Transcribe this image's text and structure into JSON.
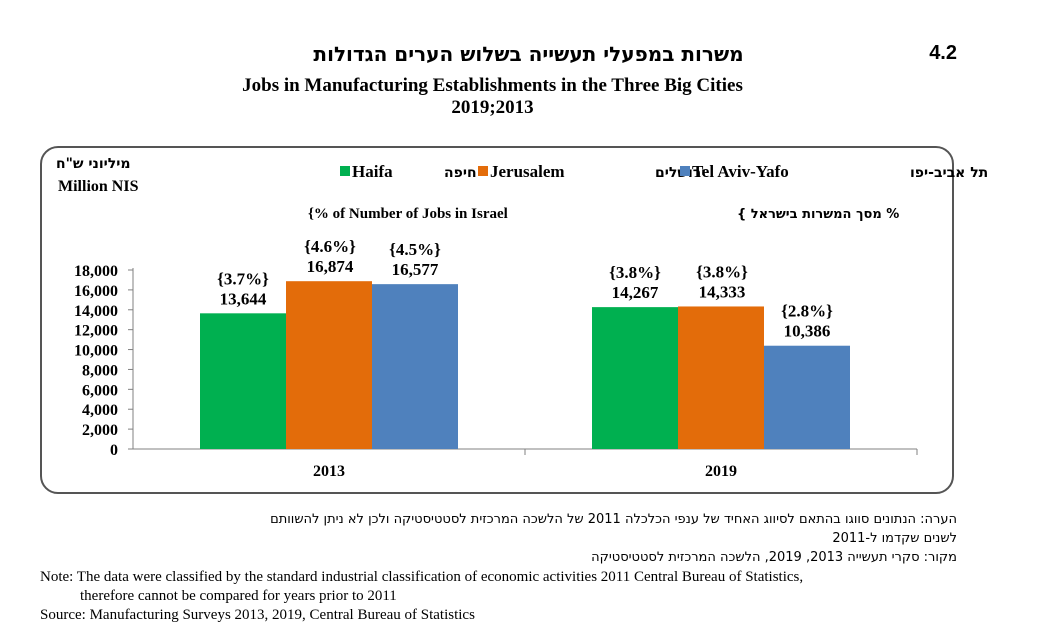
{
  "figure_number": "4.2",
  "title_he": "משרות במפעלי תעשייה בשלוש הערים הגדולות",
  "title_en": "Jobs in Manufacturing Establishments in the Three Big Cities",
  "subtitle": "2019;2013",
  "y_unit_he": "מיליוני ש\"ח",
  "y_unit_en": "Million NIS",
  "legend": [
    {
      "en": "Haifa",
      "he": "חיפה",
      "color": "#00b050"
    },
    {
      "en": "Jerusalem",
      "he": "ירושלים",
      "color": "#e36c0a"
    },
    {
      "en": "Tel Aviv-Yafo",
      "he": "תל אביב-יפו",
      "color": "#4f81bd"
    }
  ],
  "percent_note_en": "{% of  Number of Jobs in Israel",
  "percent_note_he": "% מסך המשרות  בישראל }",
  "chart_data": {
    "type": "bar",
    "categories": [
      "2013",
      "2019"
    ],
    "series": [
      {
        "name": "Haifa",
        "values": [
          13644,
          14267
        ],
        "labels": [
          "13,644",
          "14,267"
        ],
        "percents": [
          "{3.7%}",
          "{3.8%}"
        ]
      },
      {
        "name": "Jerusalem",
        "values": [
          16874,
          14333
        ],
        "labels": [
          "16,874",
          "14,333"
        ],
        "percents": [
          "{4.6%}",
          "{3.8%}"
        ]
      },
      {
        "name": "Tel Aviv-Yafo",
        "values": [
          16577,
          10386
        ],
        "labels": [
          "16,577",
          "10,386"
        ],
        "percents": [
          "{4.5%}",
          "{2.8%}"
        ]
      }
    ],
    "yticks": [
      "0",
      "2,000",
      "4,000",
      "6,000",
      "8,000",
      "10,000",
      "12,000",
      "14,000",
      "16,000",
      "18,000"
    ],
    "ylim": [
      0,
      18000
    ],
    "grid": false,
    "legend_position": "top"
  },
  "notes": {
    "note_he_1": "הערה: הנתונים סווגו בהתאם לסיווג האחיד של ענפי הכלכלה 2011 של הלשכה המרכזית לסטטיסטיקה ולכן לא ניתן להשוותם",
    "note_he_2": "לשנים שקדמו ל-2011",
    "source_he": "מקור: סקרי תעשייה 2013, 2019, הלשכה המרכזית לסטטיסטיקה",
    "note_en_1": "Note: The data were classified by the standard industrial classification of economic activities 2011 Central Bureau of Statistics,",
    "note_en_2": "therefore cannot be compared for years prior to 2011",
    "source_en": "Source: Manufacturing Surveys 2013, 2019, Central Bureau of Statistics"
  }
}
